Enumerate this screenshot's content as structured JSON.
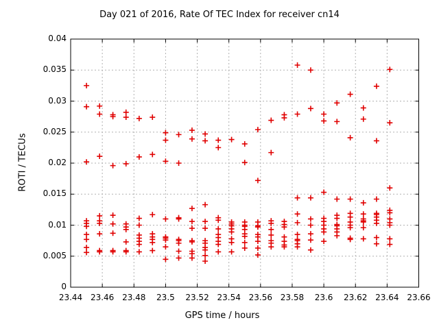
{
  "chart_data": {
    "type": "scatter",
    "title": "Day 021 of 2016, Rate Of TEC Index for receiver cn14",
    "xlabel": "GPS time / hours",
    "ylabel": "ROTI / TECUs",
    "xlim": [
      23.44,
      23.66
    ],
    "ylim": [
      0,
      0.04
    ],
    "xticks": [
      23.44,
      23.46,
      23.48,
      23.5,
      23.52,
      23.54,
      23.56,
      23.58,
      23.6,
      23.62,
      23.64,
      23.66
    ],
    "xtick_labels": [
      "23.44",
      "23.46",
      "23.48",
      "23.5",
      "23.52",
      "23.54",
      "23.56",
      "23.58",
      "23.6",
      "23.62",
      "23.64",
      "23.66"
    ],
    "yticks": [
      0,
      0.005,
      0.01,
      0.015,
      0.02,
      0.025,
      0.03,
      0.035,
      0.04
    ],
    "ytick_labels": [
      "0",
      "0.005",
      "0.01",
      "0.015",
      "0.02",
      "0.025",
      "0.03",
      "0.035",
      "0.04"
    ],
    "grid": true,
    "legend": false,
    "marker": "plus",
    "marker_color": "#e00000",
    "grid_color": "#b0b0b0",
    "axis_color": "#000000",
    "series": [
      {
        "name": "ROTI",
        "points": [
          [
            23.45,
            0.0325
          ],
          [
            23.45,
            0.0291
          ],
          [
            23.45,
            0.0202
          ],
          [
            23.45,
            0.0107
          ],
          [
            23.45,
            0.0103
          ],
          [
            23.45,
            0.0098
          ],
          [
            23.45,
            0.0085
          ],
          [
            23.45,
            0.0077
          ],
          [
            23.45,
            0.0064
          ],
          [
            23.45,
            0.0056
          ],
          [
            23.4583,
            0.0292
          ],
          [
            23.4583,
            0.0279
          ],
          [
            23.4583,
            0.0211
          ],
          [
            23.4583,
            0.0115
          ],
          [
            23.4583,
            0.0107
          ],
          [
            23.4583,
            0.0103
          ],
          [
            23.4583,
            0.0086
          ],
          [
            23.4583,
            0.0059
          ],
          [
            23.4583,
            0.0057
          ],
          [
            23.4667,
            0.0278
          ],
          [
            23.4667,
            0.0275
          ],
          [
            23.4667,
            0.0196
          ],
          [
            23.4667,
            0.0116
          ],
          [
            23.4667,
            0.0102
          ],
          [
            23.4667,
            0.0087
          ],
          [
            23.4667,
            0.0059
          ],
          [
            23.4667,
            0.0057
          ],
          [
            23.475,
            0.0282
          ],
          [
            23.475,
            0.0274
          ],
          [
            23.475,
            0.0199
          ],
          [
            23.475,
            0.0102
          ],
          [
            23.475,
            0.0097
          ],
          [
            23.475,
            0.0093
          ],
          [
            23.475,
            0.0073
          ],
          [
            23.475,
            0.0059
          ],
          [
            23.475,
            0.0057
          ],
          [
            23.4833,
            0.0272
          ],
          [
            23.4833,
            0.021
          ],
          [
            23.4833,
            0.0111
          ],
          [
            23.4833,
            0.01
          ],
          [
            23.4833,
            0.0084
          ],
          [
            23.4833,
            0.0079
          ],
          [
            23.4833,
            0.0074
          ],
          [
            23.4833,
            0.0069
          ],
          [
            23.4833,
            0.0057
          ],
          [
            23.4917,
            0.0274
          ],
          [
            23.4917,
            0.0214
          ],
          [
            23.4917,
            0.0117
          ],
          [
            23.4917,
            0.0086
          ],
          [
            23.4917,
            0.0081
          ],
          [
            23.4917,
            0.0077
          ],
          [
            23.4917,
            0.0072
          ],
          [
            23.4917,
            0.0059
          ],
          [
            23.5,
            0.0249
          ],
          [
            23.5,
            0.0237
          ],
          [
            23.5,
            0.0203
          ],
          [
            23.5,
            0.011
          ],
          [
            23.5,
            0.0081
          ],
          [
            23.5,
            0.0079
          ],
          [
            23.5,
            0.0076
          ],
          [
            23.5,
            0.0065
          ],
          [
            23.5,
            0.0045
          ],
          [
            23.5083,
            0.0246
          ],
          [
            23.5083,
            0.02
          ],
          [
            23.5083,
            0.0112
          ],
          [
            23.5083,
            0.011
          ],
          [
            23.5083,
            0.0077
          ],
          [
            23.5083,
            0.0075
          ],
          [
            23.5083,
            0.0071
          ],
          [
            23.5083,
            0.0058
          ],
          [
            23.5083,
            0.0047
          ],
          [
            23.5167,
            0.0253
          ],
          [
            23.5167,
            0.0239
          ],
          [
            23.5167,
            0.0127
          ],
          [
            23.5167,
            0.0106
          ],
          [
            23.5167,
            0.0095
          ],
          [
            23.5167,
            0.0075
          ],
          [
            23.5167,
            0.0073
          ],
          [
            23.5167,
            0.0058
          ],
          [
            23.5167,
            0.0054
          ],
          [
            23.5167,
            0.0047
          ],
          [
            23.525,
            0.0247
          ],
          [
            23.525,
            0.0236
          ],
          [
            23.525,
            0.0133
          ],
          [
            23.525,
            0.0106
          ],
          [
            23.525,
            0.0095
          ],
          [
            23.525,
            0.0075
          ],
          [
            23.525,
            0.0071
          ],
          [
            23.525,
            0.0064
          ],
          [
            23.525,
            0.006
          ],
          [
            23.525,
            0.0051
          ],
          [
            23.525,
            0.0042
          ],
          [
            23.5333,
            0.0237
          ],
          [
            23.5333,
            0.0225
          ],
          [
            23.5333,
            0.0112
          ],
          [
            23.5333,
            0.0108
          ],
          [
            23.5333,
            0.0094
          ],
          [
            23.5333,
            0.0085
          ],
          [
            23.5333,
            0.008
          ],
          [
            23.5333,
            0.0074
          ],
          [
            23.5333,
            0.0069
          ],
          [
            23.5333,
            0.0057
          ],
          [
            23.5417,
            0.0238
          ],
          [
            23.5417,
            0.0105
          ],
          [
            23.5417,
            0.0102
          ],
          [
            23.5417,
            0.0099
          ],
          [
            23.5417,
            0.0094
          ],
          [
            23.5417,
            0.0089
          ],
          [
            23.5417,
            0.0078
          ],
          [
            23.5417,
            0.0072
          ],
          [
            23.5417,
            0.0057
          ],
          [
            23.55,
            0.0231
          ],
          [
            23.55,
            0.0201
          ],
          [
            23.55,
            0.0105
          ],
          [
            23.55,
            0.01
          ],
          [
            23.55,
            0.0098
          ],
          [
            23.55,
            0.0093
          ],
          [
            23.55,
            0.0086
          ],
          [
            23.55,
            0.0082
          ],
          [
            23.55,
            0.0072
          ],
          [
            23.55,
            0.0063
          ],
          [
            23.5583,
            0.0254
          ],
          [
            23.5583,
            0.0172
          ],
          [
            23.5583,
            0.0105
          ],
          [
            23.5583,
            0.0099
          ],
          [
            23.5583,
            0.0097
          ],
          [
            23.5583,
            0.0085
          ],
          [
            23.5583,
            0.0081
          ],
          [
            23.5583,
            0.0074
          ],
          [
            23.5583,
            0.0063
          ],
          [
            23.5583,
            0.0052
          ],
          [
            23.5667,
            0.0269
          ],
          [
            23.5667,
            0.0217
          ],
          [
            23.5667,
            0.0107
          ],
          [
            23.5667,
            0.0103
          ],
          [
            23.5667,
            0.0093
          ],
          [
            23.5667,
            0.0084
          ],
          [
            23.5667,
            0.0075
          ],
          [
            23.5667,
            0.0071
          ],
          [
            23.5667,
            0.0065
          ],
          [
            23.575,
            0.0278
          ],
          [
            23.575,
            0.0273
          ],
          [
            23.575,
            0.0106
          ],
          [
            23.575,
            0.0101
          ],
          [
            23.575,
            0.0097
          ],
          [
            23.575,
            0.0081
          ],
          [
            23.575,
            0.0074
          ],
          [
            23.575,
            0.0068
          ],
          [
            23.575,
            0.0065
          ],
          [
            23.5833,
            0.0358
          ],
          [
            23.5833,
            0.0279
          ],
          [
            23.5833,
            0.0144
          ],
          [
            23.5833,
            0.0118
          ],
          [
            23.5833,
            0.0104
          ],
          [
            23.5833,
            0.0085
          ],
          [
            23.5833,
            0.0077
          ],
          [
            23.5833,
            0.0075
          ],
          [
            23.5833,
            0.007
          ],
          [
            23.5833,
            0.0065
          ],
          [
            23.5917,
            0.035
          ],
          [
            23.5917,
            0.0288
          ],
          [
            23.5917,
            0.0144
          ],
          [
            23.5917,
            0.011
          ],
          [
            23.5917,
            0.01
          ],
          [
            23.5917,
            0.0086
          ],
          [
            23.5917,
            0.0076
          ],
          [
            23.5917,
            0.006
          ],
          [
            23.6,
            0.0279
          ],
          [
            23.6,
            0.0268
          ],
          [
            23.6,
            0.0153
          ],
          [
            23.6,
            0.0111
          ],
          [
            23.6,
            0.0106
          ],
          [
            23.6,
            0.01
          ],
          [
            23.6,
            0.0094
          ],
          [
            23.6,
            0.0089
          ],
          [
            23.6,
            0.0074
          ],
          [
            23.6083,
            0.0297
          ],
          [
            23.6083,
            0.0267
          ],
          [
            23.6083,
            0.0142
          ],
          [
            23.6083,
            0.0116
          ],
          [
            23.6083,
            0.0111
          ],
          [
            23.6083,
            0.0101
          ],
          [
            23.6083,
            0.0099
          ],
          [
            23.6083,
            0.0094
          ],
          [
            23.6083,
            0.0089
          ],
          [
            23.6083,
            0.0083
          ],
          [
            23.6167,
            0.0311
          ],
          [
            23.6167,
            0.0241
          ],
          [
            23.6167,
            0.0142
          ],
          [
            23.6167,
            0.0119
          ],
          [
            23.6167,
            0.0113
          ],
          [
            23.6167,
            0.0105
          ],
          [
            23.6167,
            0.01
          ],
          [
            23.6167,
            0.0096
          ],
          [
            23.6167,
            0.0079
          ],
          [
            23.6167,
            0.0077
          ],
          [
            23.625,
            0.0289
          ],
          [
            23.625,
            0.0271
          ],
          [
            23.625,
            0.0136
          ],
          [
            23.625,
            0.0118
          ],
          [
            23.625,
            0.011
          ],
          [
            23.625,
            0.0107
          ],
          [
            23.625,
            0.0105
          ],
          [
            23.625,
            0.0096
          ],
          [
            23.625,
            0.0078
          ],
          [
            23.6333,
            0.0324
          ],
          [
            23.6333,
            0.0236
          ],
          [
            23.6333,
            0.0142
          ],
          [
            23.6333,
            0.0119
          ],
          [
            23.6333,
            0.0117
          ],
          [
            23.6333,
            0.0113
          ],
          [
            23.6333,
            0.0108
          ],
          [
            23.6333,
            0.0103
          ],
          [
            23.6333,
            0.008
          ],
          [
            23.6333,
            0.007
          ],
          [
            23.6417,
            0.0351
          ],
          [
            23.6417,
            0.0265
          ],
          [
            23.6417,
            0.016
          ],
          [
            23.6417,
            0.0124
          ],
          [
            23.6417,
            0.012
          ],
          [
            23.6417,
            0.011
          ],
          [
            23.6417,
            0.0104
          ],
          [
            23.6417,
            0.01
          ],
          [
            23.6417,
            0.0078
          ],
          [
            23.6417,
            0.0069
          ]
        ]
      }
    ]
  }
}
